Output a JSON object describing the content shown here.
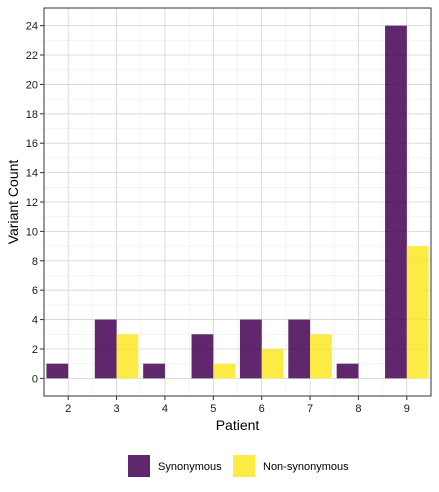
{
  "chart_data": {
    "type": "bar",
    "title": "",
    "xlabel": "Patient",
    "ylabel": "Variant Count",
    "categories": [
      "2",
      "3",
      "4",
      "5",
      "6",
      "7",
      "8",
      "9"
    ],
    "series": [
      {
        "name": "Synonymous",
        "color": "#440154",
        "values": [
          1,
          4,
          1,
          3,
          4,
          4,
          1,
          24
        ]
      },
      {
        "name": "Non-synonymous",
        "color": "#FDE725",
        "values": [
          0,
          3,
          0,
          1,
          2,
          3,
          0,
          9
        ]
      }
    ],
    "ylim": [
      -1.2,
      25.2
    ],
    "yticks": [
      0,
      2,
      4,
      6,
      8,
      10,
      12,
      14,
      16,
      18,
      20,
      22,
      24
    ],
    "grid": true,
    "legend_position": "bottom"
  }
}
